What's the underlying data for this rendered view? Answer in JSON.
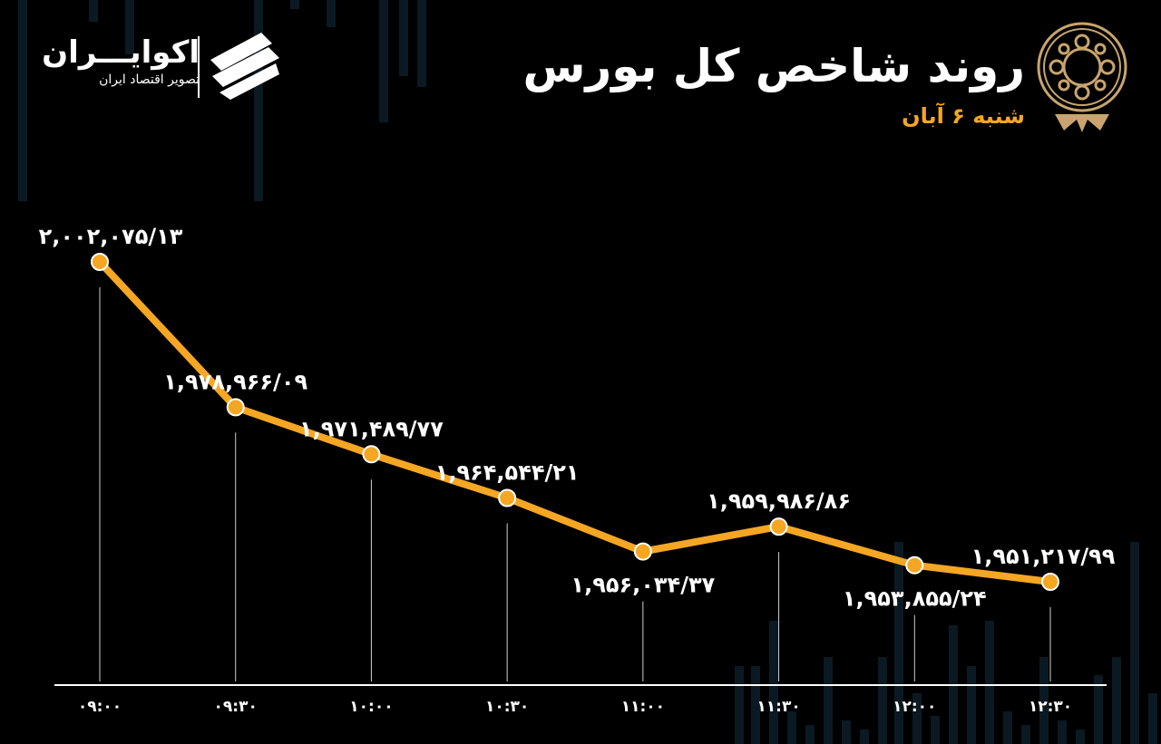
{
  "header": {
    "title": "روند شاخص کل بورس",
    "date": "شنبه ۶ آبان"
  },
  "brand": {
    "name": "اکوایـــران",
    "tagline": "تصویر اقتصاد ایران"
  },
  "colors": {
    "background": "#000000",
    "line": "#f5a623",
    "point_fill": "#f5a623",
    "point_stroke": "#ffffff",
    "text": "#ffffff",
    "subtitle": "#f5a623"
  },
  "icons": [
    "tse-emblem-icon",
    "ecoiran-logo-icon"
  ],
  "chart_data": {
    "type": "line",
    "title": "روند شاخص کل بورس",
    "subtitle": "شنبه ۶ آبان",
    "categories": [
      "۰۹:۰۰",
      "۰۹:۳۰",
      "۱۰:۰۰",
      "۱۰:۳۰",
      "۱۱:۰۰",
      "۱۱:۳۰",
      "۱۲:۰۰",
      "۱۲:۳۰"
    ],
    "values": [
      2002075.13,
      1978966.09,
      1971489.77,
      1964544.21,
      1956034.37,
      1959986.86,
      1953855.24,
      1951217.99
    ],
    "labels": [
      "۲,۰۰۲,۰۷۵/۱۳",
      "۱,۹۷۸,۹۶۶/۰۹",
      "۱,۹۷۱,۴۸۹/۷۷",
      "۱,۹۶۴,۵۴۴/۲۱",
      "۱,۹۵۶,۰۳۴/۳۷",
      "۱,۹۵۹,۹۸۶/۸۶",
      "۱,۹۵۳,۸۵۵/۲۴",
      "۱,۹۵۱,۲۱۷/۹۹"
    ],
    "label_position": [
      "above",
      "above",
      "above",
      "above",
      "below",
      "above",
      "below",
      "above"
    ],
    "grid": false,
    "legend": "none"
  }
}
